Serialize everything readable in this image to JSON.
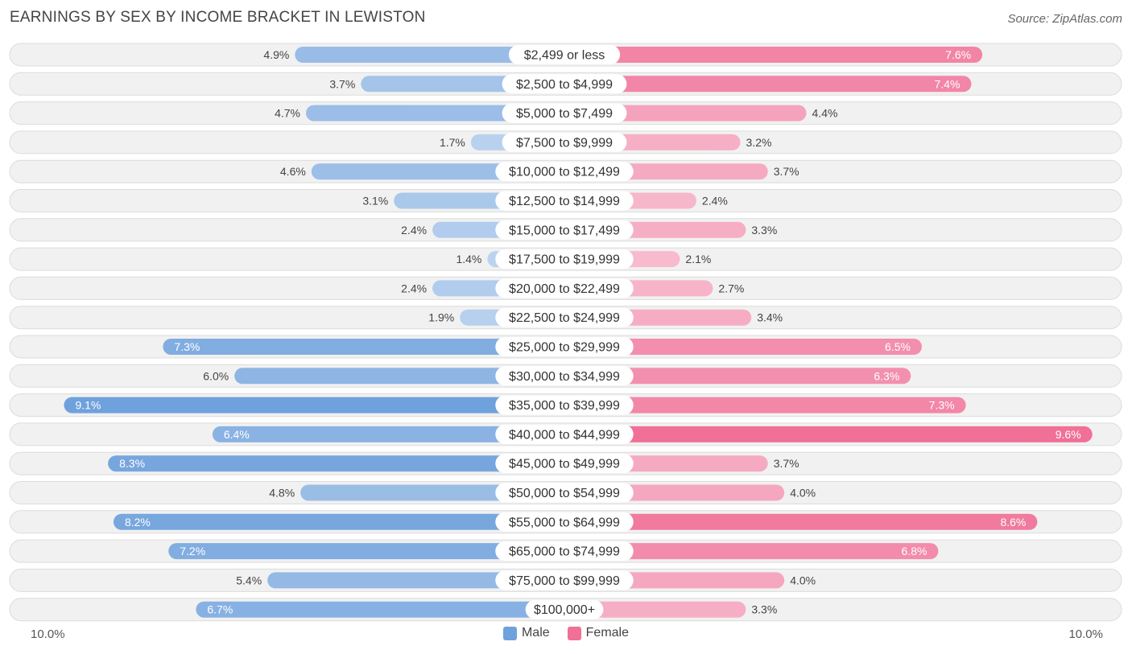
{
  "title": "EARNINGS BY SEX BY INCOME BRACKET IN LEWISTON",
  "source": "Source: ZipAtlas.com",
  "colors": {
    "male": "#6fa1dc",
    "female": "#f07098",
    "male_light": "#a9c6ea",
    "female_light": "#f5a3bf"
  },
  "chart_data": {
    "type": "bar",
    "orientation": "horizontal-diverging",
    "title": "EARNINGS BY SEX BY INCOME BRACKET IN LEWISTON",
    "categories": [
      "$2,499 or less",
      "$2,500 to $4,999",
      "$5,000 to $7,499",
      "$7,500 to $9,999",
      "$10,000 to $12,499",
      "$12,500 to $14,999",
      "$15,000 to $17,499",
      "$17,500 to $19,999",
      "$20,000 to $22,499",
      "$22,500 to $24,999",
      "$25,000 to $29,999",
      "$30,000 to $34,999",
      "$35,000 to $39,999",
      "$40,000 to $44,999",
      "$45,000 to $49,999",
      "$50,000 to $54,999",
      "$55,000 to $64,999",
      "$65,000 to $74,999",
      "$75,000 to $99,999",
      "$100,000+"
    ],
    "series": [
      {
        "name": "Male",
        "values": [
          4.9,
          3.7,
          4.7,
          1.7,
          4.6,
          3.1,
          2.4,
          1.4,
          2.4,
          1.9,
          7.3,
          6.0,
          9.1,
          6.4,
          8.3,
          4.8,
          8.2,
          7.2,
          5.4,
          6.7
        ]
      },
      {
        "name": "Female",
        "values": [
          7.6,
          7.4,
          4.4,
          3.2,
          3.7,
          2.4,
          3.3,
          2.1,
          2.7,
          3.4,
          6.5,
          6.3,
          7.3,
          9.6,
          3.7,
          4.0,
          8.6,
          6.8,
          4.0,
          3.3
        ]
      }
    ],
    "xlim": [
      -10,
      10
    ],
    "axis_left_label": "10.0%",
    "axis_right_label": "10.0%",
    "unit": "%",
    "legend": [
      "Male",
      "Female"
    ],
    "legend_position": "bottom-center"
  }
}
